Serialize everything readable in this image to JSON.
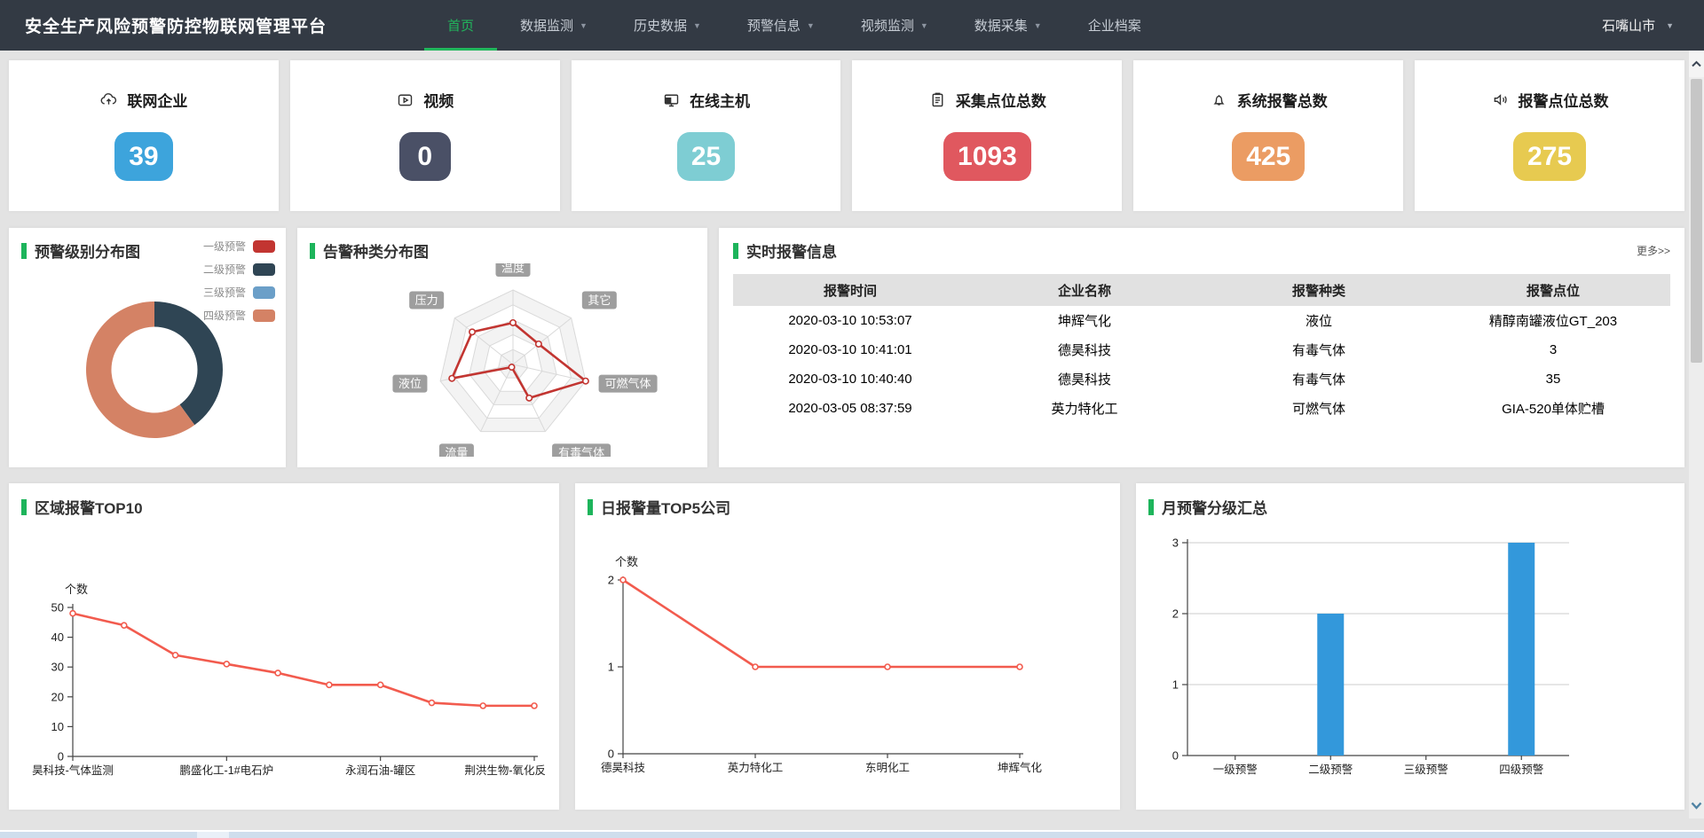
{
  "nav": {
    "title": "安全生产风险预警防控物联网管理平台",
    "items": [
      {
        "label": "首页",
        "caret": false,
        "active": true
      },
      {
        "label": "数据监测",
        "caret": true,
        "active": false
      },
      {
        "label": "历史数据",
        "caret": true,
        "active": false
      },
      {
        "label": "预警信息",
        "caret": true,
        "active": false
      },
      {
        "label": "视频监测",
        "caret": true,
        "active": false
      },
      {
        "label": "数据采集",
        "caret": true,
        "active": false
      },
      {
        "label": "企业档案",
        "caret": false,
        "active": false
      }
    ],
    "region": "石嘴山市"
  },
  "stats": [
    {
      "label": "联网企业",
      "value": "39",
      "color": "#3da4dc",
      "icon": "cloud-upload-icon"
    },
    {
      "label": "视频",
      "value": "0",
      "color": "#4a5066",
      "icon": "video-icon"
    },
    {
      "label": "在线主机",
      "value": "25",
      "color": "#7ecdd3",
      "icon": "monitor-icon"
    },
    {
      "label": "采集点位总数",
      "value": "1093",
      "color": "#e0585f",
      "icon": "clipboard-icon"
    },
    {
      "label": "系统报警总数",
      "value": "425",
      "color": "#eb9c63",
      "icon": "bell-icon"
    },
    {
      "label": "报警点位总数",
      "value": "275",
      "color": "#e7ca50",
      "icon": "speaker-icon"
    }
  ],
  "panels": {
    "donut": {
      "title": "预警级别分布图"
    },
    "radar": {
      "title": "告警种类分布图"
    },
    "realtime": {
      "title": "实时报警信息",
      "more": "更多>>",
      "headers": [
        "报警时间",
        "企业名称",
        "报警种类",
        "报警点位"
      ],
      "rows": [
        [
          "2020-03-10 10:53:07",
          "坤辉气化",
          "液位",
          "精醇南罐液位GT_203"
        ],
        [
          "2020-03-10 10:41:01",
          "德昊科技",
          "有毒气体",
          "3"
        ],
        [
          "2020-03-10 10:40:40",
          "德昊科技",
          "有毒气体",
          "35"
        ],
        [
          "2020-03-05 08:37:59",
          "英力特化工",
          "可燃气体",
          "GIA-520单体贮槽"
        ]
      ]
    },
    "top10": {
      "title": "区域报警TOP10"
    },
    "top5": {
      "title": "日报警量TOP5公司"
    },
    "monthly": {
      "title": "月预警分级汇总"
    }
  },
  "chart_data": [
    {
      "id": "warning_level_donut",
      "type": "pie",
      "title": "预警级别分布图",
      "labels": [
        "一级预警",
        "二级预警",
        "三级预警",
        "四级预警"
      ],
      "values": [
        0,
        2,
        0,
        3
      ],
      "colors": [
        "#c23531",
        "#2f4554",
        "#6b9fc8",
        "#d48265"
      ],
      "inner_radius_ratio": 0.63,
      "legend_position": "top-right"
    },
    {
      "id": "alarm_type_radar",
      "type": "radar",
      "title": "告警种类分布图",
      "axes": [
        "温度",
        "其它",
        "可燃气体",
        "有毒气体",
        "流量",
        "液位",
        "压力"
      ],
      "values": [
        0.56,
        0.44,
        1.0,
        0.5,
        0.04,
        0.84,
        0.7
      ],
      "max": 1,
      "levels": 5,
      "line_color": "#c23531",
      "label_bg": "#9e9e9e"
    },
    {
      "id": "region_alarm_top10",
      "type": "line",
      "title": "区域报警TOP10",
      "ylabel": "个数",
      "ylim": [
        0,
        50
      ],
      "yticks": [
        0,
        10,
        20,
        30,
        40,
        50
      ],
      "values": [
        48,
        44,
        34,
        31,
        28,
        24,
        24,
        18,
        17,
        17
      ],
      "x_labels": [
        {
          "index": 0,
          "text": "昊科技-气体监测"
        },
        {
          "index": 3,
          "text": "鹏盛化工-1#电石炉"
        },
        {
          "index": 6,
          "text": "永润石油-罐区"
        },
        {
          "index": 9,
          "text": "荆洪生物-氧化反"
        }
      ],
      "line_color": "#f25b4e"
    },
    {
      "id": "daily_alarm_top5",
      "type": "line",
      "title": "日报警量TOP5公司",
      "ylabel": "个数",
      "ylim": [
        0,
        2
      ],
      "yticks": [
        0,
        1,
        2
      ],
      "categories": [
        "德昊科技",
        "英力特化工",
        "东明化工",
        "坤辉气化"
      ],
      "values": [
        2,
        1,
        1,
        1
      ],
      "line_color": "#f25b4e"
    },
    {
      "id": "monthly_warning_levels",
      "type": "bar",
      "title": "月预警分级汇总",
      "ylim": [
        0,
        3
      ],
      "yticks": [
        0,
        1,
        2,
        3
      ],
      "categories": [
        "一级预警",
        "二级预警",
        "三级预警",
        "四级预警"
      ],
      "values": [
        0,
        2,
        0,
        3
      ],
      "bar_color": "#3398db",
      "grid": true
    }
  ]
}
